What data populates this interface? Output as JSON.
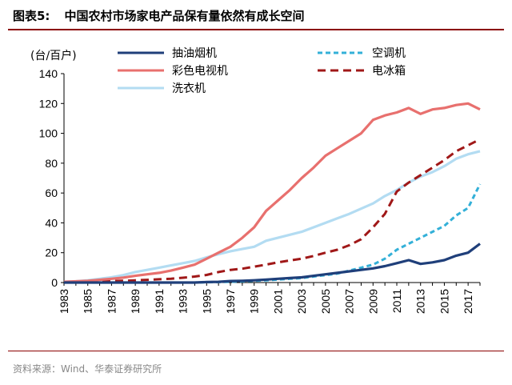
{
  "header": {
    "figure_number": "图表5:",
    "title": "中国农村市场家电产品保有量依然有成长空间"
  },
  "footer": {
    "source": "资料来源：Wind、华泰证券研究所"
  },
  "chart_data": {
    "type": "line",
    "unit_label": "(台/百户)",
    "ylim": [
      0,
      140
    ],
    "yticks": [
      0,
      20,
      40,
      60,
      80,
      100,
      120,
      140
    ],
    "xticks": [
      "1983",
      "1985",
      "1987",
      "1989",
      "1991",
      "1993",
      "1995",
      "1997",
      "1999",
      "2001",
      "2003",
      "2005",
      "2007",
      "2009",
      "2011",
      "2013",
      "2015",
      "2017"
    ],
    "x": [
      1983,
      1984,
      1985,
      1986,
      1987,
      1988,
      1989,
      1990,
      1991,
      1992,
      1993,
      1994,
      1995,
      1996,
      1997,
      1998,
      1999,
      2000,
      2001,
      2002,
      2003,
      2004,
      2005,
      2006,
      2007,
      2008,
      2009,
      2010,
      2011,
      2012,
      2013,
      2014,
      2015,
      2016,
      2017,
      2018
    ],
    "legend_position": "top",
    "grid": false,
    "series": [
      {
        "name": "抽油烟机",
        "color": "#1f3f7a",
        "dash": "solid",
        "values": [
          0,
          0,
          0,
          0,
          0,
          0,
          0,
          0,
          0,
          0,
          0,
          0,
          0.3,
          0.5,
          1.0,
          1.2,
          1.5,
          2,
          2.5,
          3,
          3.5,
          4.5,
          5.5,
          6.5,
          7.5,
          8.5,
          9.5,
          11,
          13,
          15,
          12.5,
          13.5,
          15,
          18,
          20,
          26
        ]
      },
      {
        "name": "空调机",
        "color": "#33b0d8",
        "dash": "dashed",
        "values": [
          0,
          0,
          0,
          0,
          0,
          0,
          0,
          0,
          0,
          0,
          0,
          0,
          0.2,
          0.3,
          0.5,
          0.8,
          1.2,
          1.5,
          2,
          2.5,
          3,
          4,
          5,
          6,
          8,
          10,
          12,
          16,
          22,
          26,
          30,
          34,
          38,
          45,
          50,
          66
        ]
      },
      {
        "name": "彩色电视机",
        "color": "#e8706e",
        "dash": "solid",
        "values": [
          0.5,
          0.8,
          1.2,
          1.8,
          2.5,
          3.3,
          4.5,
          5.5,
          6.5,
          8,
          10,
          12,
          16,
          20,
          24,
          30,
          37,
          48,
          55,
          62,
          70,
          77,
          85,
          90,
          95,
          100,
          109,
          112,
          114,
          117,
          113,
          116,
          117,
          119,
          120,
          116
        ]
      },
      {
        "name": "电冰箱",
        "color": "#a01818",
        "dash": "dashed",
        "values": [
          0.1,
          0.2,
          0.3,
          0.5,
          1,
          1.2,
          1.5,
          1.8,
          2.2,
          2.6,
          3.2,
          4,
          5.1,
          7,
          8.5,
          9.3,
          10.6,
          12,
          13.5,
          14.8,
          16,
          17.8,
          20,
          22,
          25,
          29,
          37,
          46,
          61,
          67,
          72,
          77,
          82,
          88,
          92,
          96
        ]
      },
      {
        "name": "洗衣机",
        "color": "#b3dcf2",
        "dash": "solid",
        "values": [
          0.5,
          0.8,
          1.5,
          2.5,
          3.5,
          5,
          7,
          8.5,
          10,
          11.5,
          13,
          14.5,
          16.9,
          19,
          21,
          22.5,
          24,
          28,
          30,
          32,
          34,
          37,
          40,
          43,
          46,
          49.5,
          53,
          58,
          62,
          67,
          71,
          74,
          78,
          83,
          86,
          88
        ]
      }
    ]
  }
}
